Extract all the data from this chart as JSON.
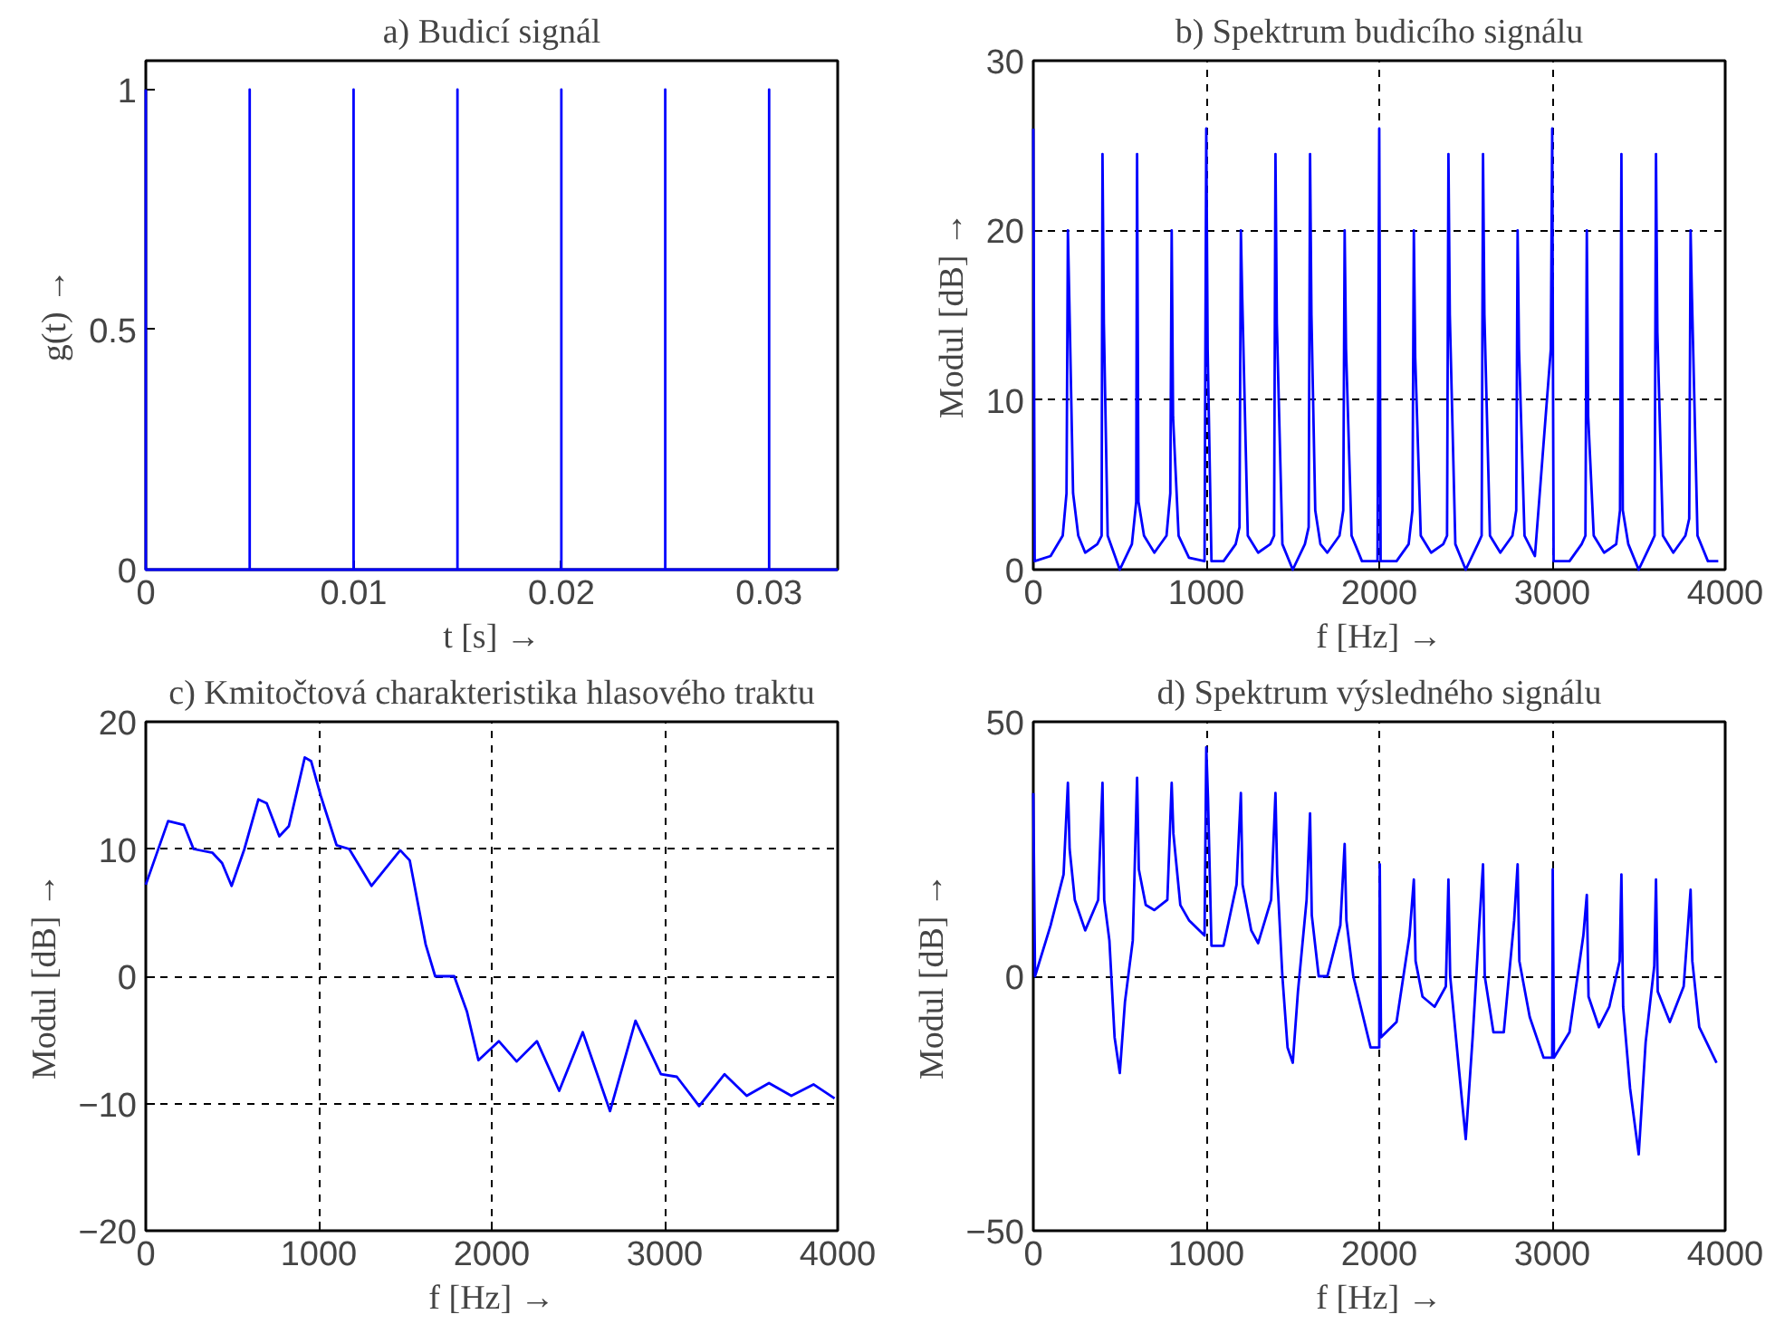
{
  "chart_data": [
    {
      "type": "line",
      "title": "a) Budicí signál",
      "xlabel": "t [s] →",
      "ylabel": "g(t) →",
      "xlim": [
        0,
        0.0333
      ],
      "ylim": [
        0,
        1.06
      ],
      "xticks": [
        0,
        0.01,
        0.02,
        0.03
      ],
      "yticks": [
        0,
        0.5,
        1
      ],
      "series": [
        {
          "color": "#0000ff",
          "x": [
            0,
            0,
            0.005,
            0.005,
            0.005,
            0.01,
            0.01,
            0.01,
            0.015,
            0.015,
            0.015,
            0.02,
            0.02,
            0.02,
            0.025,
            0.025,
            0.025,
            0.03,
            0.03,
            0.03,
            0.0333
          ],
          "values": [
            1,
            0,
            0,
            1,
            0,
            0,
            1,
            0,
            0,
            1,
            0,
            0,
            1,
            0,
            0,
            1,
            0,
            0,
            1,
            0,
            0
          ]
        }
      ]
    },
    {
      "type": "line",
      "title": "b) Spektrum budicího signálu",
      "xlabel": "f [Hz] →",
      "ylabel": "Modul [dB] →",
      "xlim": [
        0,
        4000
      ],
      "ylim": [
        0,
        30
      ],
      "xticks": [
        0,
        1000,
        2000,
        3000,
        4000
      ],
      "yticks": [
        0,
        10,
        20,
        30
      ],
      "grid": true,
      "series": [
        {
          "color": "#0000ff",
          "x": [
            0,
            8,
            100,
            170,
            192,
            200,
            208,
            230,
            260,
            300,
            370,
            395,
            400,
            408,
            430,
            500,
            570,
            595,
            600,
            608,
            640,
            700,
            770,
            792,
            800,
            808,
            840,
            900,
            990,
            1000,
            1008,
            1030,
            1100,
            1170,
            1192,
            1200,
            1208,
            1240,
            1300,
            1370,
            1392,
            1400,
            1408,
            1440,
            1500,
            1570,
            1592,
            1600,
            1608,
            1630,
            1660,
            1700,
            1770,
            1792,
            1800,
            1808,
            1840,
            1900,
            1990,
            2000,
            2008,
            2100,
            2170,
            2192,
            2200,
            2208,
            2240,
            2300,
            2370,
            2392,
            2400,
            2408,
            2440,
            2500,
            2570,
            2592,
            2600,
            2608,
            2640,
            2700,
            2770,
            2792,
            2800,
            2808,
            2840,
            2900,
            2992,
            3000,
            3008,
            3100,
            3170,
            3192,
            3200,
            3208,
            3240,
            3300,
            3370,
            3392,
            3400,
            3408,
            3440,
            3500,
            3570,
            3592,
            3600,
            3608,
            3640,
            3700,
            3770,
            3792,
            3800,
            3808,
            3840,
            3900,
            3960
          ],
          "values": [
            26,
            0.5,
            0.8,
            2,
            4.5,
            20,
            16,
            4.5,
            2,
            1,
            1.5,
            2,
            24.5,
            14.5,
            2,
            0,
            1.5,
            4,
            24.5,
            4,
            2,
            1,
            2,
            4.5,
            20,
            9,
            2,
            0.7,
            0.5,
            26,
            13,
            0.5,
            0.5,
            1.5,
            2.5,
            20,
            16,
            2,
            1,
            1.5,
            2,
            24.5,
            14.5,
            1.5,
            0,
            1.5,
            2.5,
            24.5,
            15,
            3.5,
            1.5,
            1,
            2,
            3.5,
            20,
            13,
            2,
            0.5,
            0.5,
            26,
            0.5,
            0.5,
            1.5,
            3.5,
            20,
            12.5,
            2,
            1,
            1.5,
            2,
            24.5,
            15,
            1.5,
            0,
            1.5,
            2,
            24.5,
            15,
            2,
            1,
            2,
            3.5,
            20,
            13,
            2,
            0.8,
            13,
            26,
            0.5,
            0.5,
            1.5,
            2,
            20,
            9,
            2,
            1,
            1.5,
            3.5,
            24.5,
            3.5,
            1.5,
            0,
            1.5,
            2,
            24.5,
            14,
            2,
            1,
            2,
            3,
            20,
            16,
            2,
            0.5,
            0.5
          ]
        }
      ]
    },
    {
      "type": "line",
      "title": "c) Kmitočtová charakteristika hlasového traktu",
      "xlabel": "f [Hz] →",
      "ylabel": "Modul [dB] →",
      "xlim": [
        0,
        4000
      ],
      "ylim": [
        -20,
        20
      ],
      "xticks": [
        0,
        1000,
        2000,
        3000,
        4000
      ],
      "yticks": [
        -20,
        -10,
        0,
        10,
        20
      ],
      "grid": true,
      "series": [
        {
          "color": "#0000ff",
          "x": [
            0,
            129,
            220,
            276,
            386,
            441,
            496,
            570,
            651,
            699,
            772,
            827,
            919,
            956,
            1011,
            1103,
            1176,
            1305,
            1471,
            1526,
            1618,
            1673,
            1783,
            1857,
            1923,
            2041,
            2144,
            2261,
            2390,
            2526,
            2684,
            2831,
            2978,
            3070,
            3199,
            3346,
            3474,
            3603,
            3732,
            3860,
            3982
          ],
          "values": [
            7.2,
            12.2,
            11.9,
            10,
            9.7,
            8.9,
            7.1,
            10,
            13.9,
            13.6,
            11,
            11.8,
            17.2,
            16.9,
            14.2,
            10.3,
            10,
            7.1,
            9.9,
            9.1,
            2.5,
            0,
            0,
            -2.8,
            -6.6,
            -5.1,
            -6.7,
            -5.1,
            -9,
            -4.4,
            -10.6,
            -3.5,
            -7.7,
            -7.9,
            -10.2,
            -7.7,
            -9.4,
            -8.4,
            -9.4,
            -8.5,
            -9.6
          ]
        }
      ]
    },
    {
      "type": "line",
      "title": "d) Spektrum výsledného signálu",
      "xlabel": "f [Hz] →",
      "ylabel": "Modul [dB] →",
      "xlim": [
        0,
        4000
      ],
      "ylim": [
        -50,
        50
      ],
      "xticks": [
        0,
        1000,
        2000,
        3000,
        4000
      ],
      "yticks": [
        -50,
        0,
        50
      ],
      "grid": true,
      "series": [
        {
          "color": "#0000ff",
          "x": [
            0,
            10,
            100,
            175,
            200,
            210,
            240,
            300,
            375,
            400,
            410,
            440,
            470,
            500,
            530,
            575,
            600,
            610,
            650,
            700,
            775,
            800,
            810,
            850,
            900,
            990,
            1000,
            1010,
            1030,
            1100,
            1175,
            1200,
            1210,
            1260,
            1300,
            1375,
            1400,
            1410,
            1440,
            1470,
            1500,
            1530,
            1580,
            1600,
            1610,
            1650,
            1700,
            1775,
            1800,
            1810,
            1850,
            1950,
            2000,
            2003,
            2010,
            2100,
            2175,
            2200,
            2210,
            2250,
            2320,
            2385,
            2400,
            2410,
            2460,
            2500,
            2540,
            2580,
            2600,
            2610,
            2660,
            2720,
            2780,
            2800,
            2810,
            2870,
            2950,
            3000,
            3003,
            3010,
            3100,
            3180,
            3200,
            3210,
            3270,
            3330,
            3390,
            3400,
            3410,
            3450,
            3500,
            3540,
            3590,
            3600,
            3610,
            3680,
            3760,
            3800,
            3810,
            3850,
            3950
          ],
          "values": [
            36,
            0,
            10,
            20,
            38,
            25,
            15,
            9,
            15,
            38,
            15,
            7,
            -12,
            -19,
            -5,
            7,
            39,
            21,
            14,
            13,
            15,
            38,
            28,
            14,
            11,
            8,
            45,
            35,
            6,
            6,
            18,
            36,
            18,
            9,
            6.5,
            15,
            36,
            20,
            0,
            -14,
            -17,
            -3,
            15,
            32,
            12,
            0,
            0,
            10,
            26,
            11,
            0,
            -14,
            -14,
            22,
            -12,
            -9,
            8,
            19,
            3,
            -4,
            -6,
            -2,
            19,
            0,
            -18,
            -32,
            -12,
            11,
            22,
            0,
            -11,
            -11,
            11,
            22,
            3,
            -8,
            -16,
            -16,
            21,
            -16,
            -11,
            8,
            16,
            -4,
            -10,
            -6,
            3,
            20,
            -6,
            -22,
            -35,
            -13,
            2,
            19,
            -3,
            -9,
            -2,
            17,
            3,
            -10,
            -17
          ]
        }
      ]
    }
  ]
}
